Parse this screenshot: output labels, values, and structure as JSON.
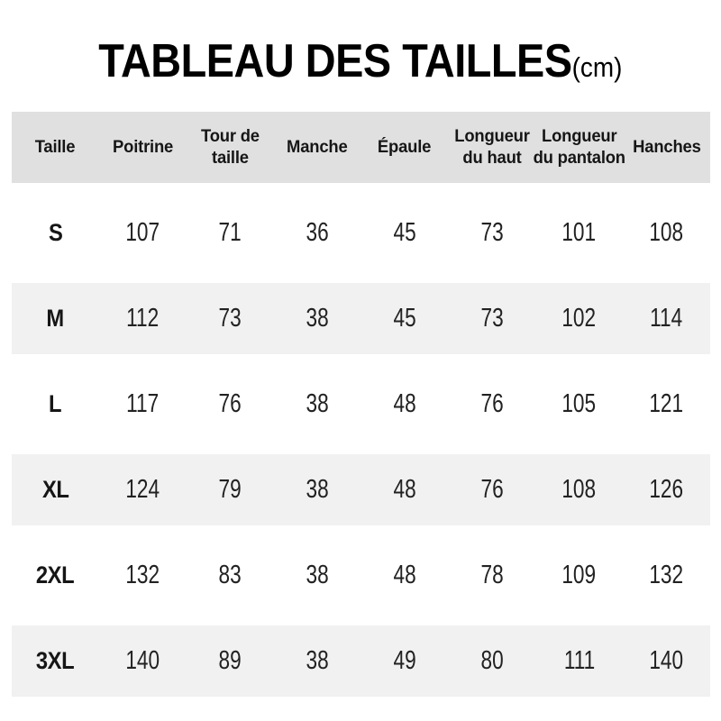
{
  "title": {
    "main": "TABLEAU DES TAILLES",
    "unit": "(cm)"
  },
  "chart_data": {
    "type": "table",
    "title": "TABLEAU DES TAILLES (cm)",
    "unit": "cm",
    "columns": [
      "Taille",
      "Poitrine",
      "Tour de\ntaille",
      "Manche",
      "Épaule",
      "Longueur\ndu haut",
      "Longueur\ndu pantalon",
      "Hanches"
    ],
    "rows": [
      {
        "size": "S",
        "values": [
          107,
          71,
          36,
          45,
          73,
          101,
          108
        ]
      },
      {
        "size": "M",
        "values": [
          112,
          73,
          38,
          45,
          73,
          102,
          114
        ]
      },
      {
        "size": "L",
        "values": [
          117,
          76,
          38,
          48,
          76,
          105,
          121
        ]
      },
      {
        "size": "XL",
        "values": [
          124,
          79,
          38,
          48,
          76,
          108,
          126
        ]
      },
      {
        "size": "2XL",
        "values": [
          132,
          83,
          38,
          48,
          78,
          109,
          132
        ]
      },
      {
        "size": "3XL",
        "values": [
          140,
          89,
          38,
          49,
          80,
          111,
          140
        ]
      }
    ]
  },
  "colors": {
    "header_bg": "#e0e0e0",
    "stripe_bg": "#f1f1f1",
    "text": "#161616",
    "num_text": "#222222",
    "page_bg": "#ffffff"
  }
}
